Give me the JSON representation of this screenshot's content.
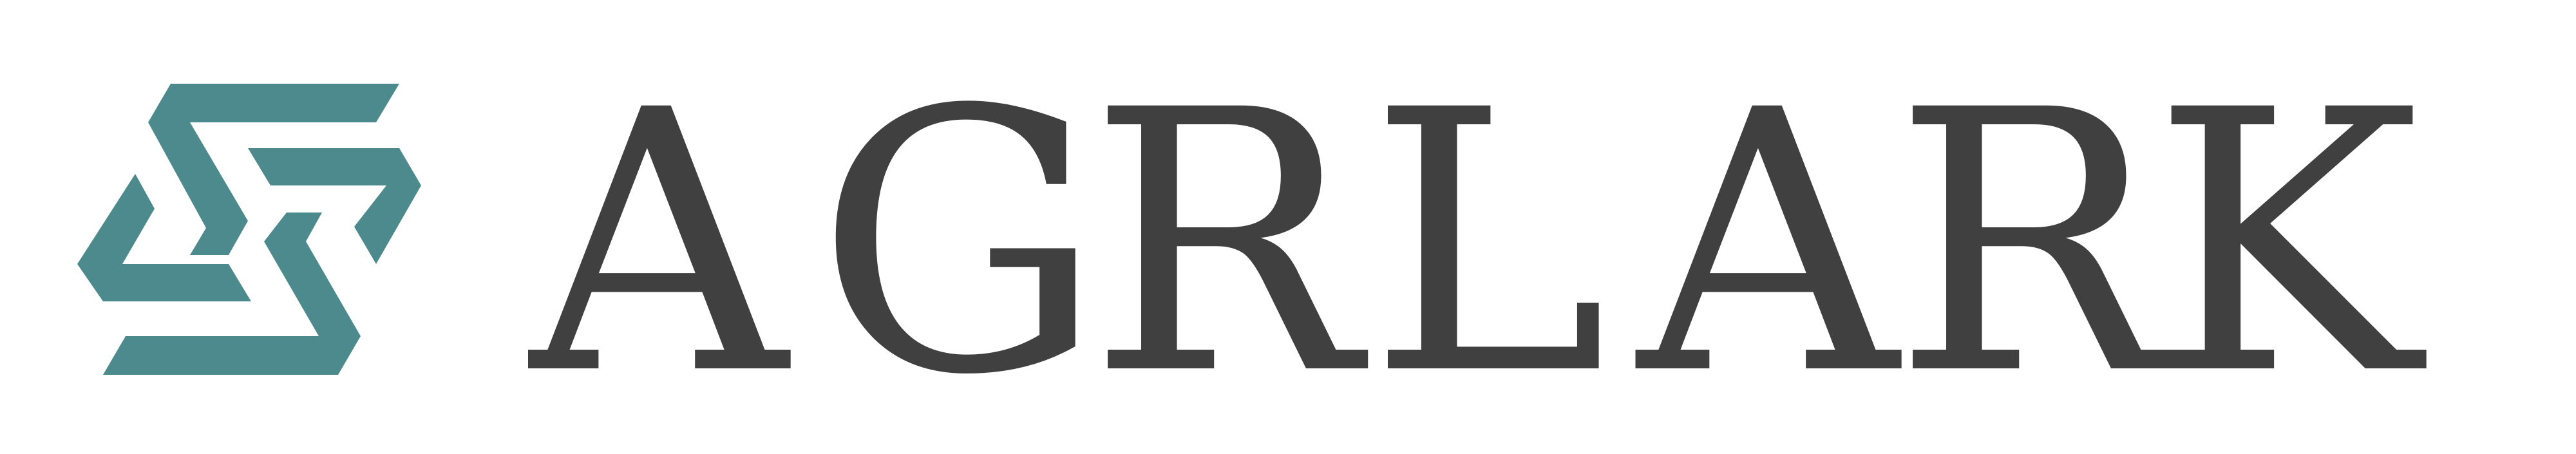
{
  "brand": {
    "name": "AGRLARK",
    "letters": [
      "A",
      "G",
      "R",
      "L",
      "A",
      "R",
      "K"
    ],
    "mark_icon": "interlocking-s-chevron-icon",
    "colors": {
      "mark": "#4d8a8e",
      "text": "#404040",
      "background": "#ffffff"
    }
  }
}
